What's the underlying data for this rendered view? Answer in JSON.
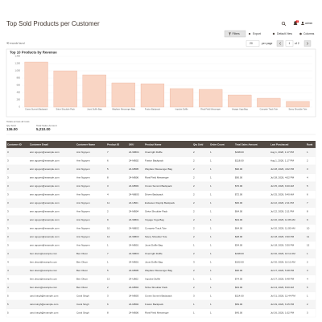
{
  "header": {
    "title": "Top Sold Products per Customer",
    "notifications": "1",
    "user": "admin"
  },
  "toolbar": {
    "filters": "Filters",
    "export": "Export",
    "view": "Default View",
    "columns": "Columns"
  },
  "records": "40 records found",
  "pager": {
    "per_page_value": "20",
    "per_page": "per page",
    "page": "1",
    "of": "of 2"
  },
  "chart_data": {
    "type": "bar",
    "title": "Top 10 Products by Revenue",
    "categories": [
      "Crown Summit Backpack",
      "Strive Shoulder Pack",
      "Joust Duffle Bag",
      "Wayfarer Messenger Bag",
      "Fusion Backpack",
      "Impulse Duffle",
      "Rival Field Messenger",
      "Voyage Yoga Bag",
      "Compete Track Tote",
      "Savvy Shoulder Tote"
    ],
    "values": [
      1244,
      1000,
      889,
      667,
      644,
      511,
      489,
      333,
      244,
      156
    ],
    "color": "#f9d5c4",
    "ylim": [
      0,
      1400
    ],
    "yticks": [
      0,
      200,
      400,
      600,
      800,
      {
        "value": 1000,
        "label": "1,000"
      },
      {
        "value": 1200,
        "label": "1,200"
      },
      {
        "value": 1400,
        "label": "1,400"
      }
    ],
    "grid": true
  },
  "summary": {
    "caption": "Totals across all rows",
    "qty_label": "Qty Sold",
    "qty": "136.00",
    "sales_label": "Total Sales Amount",
    "sales": "5,210.00"
  },
  "table": {
    "columns": [
      "Customer ID",
      "Customer Email",
      "Customer Name",
      "Product ID",
      "SKU",
      "Product Name",
      "Qty Sold",
      "Order Count",
      "Total Sales Amount",
      "Last Purchased",
      "Rank"
    ],
    "rows": [
      [
        "3",
        "ann.nguyen@example.com",
        "Ann Nguyen",
        "7",
        "24-WB04",
        "Overnight Duffle",
        "2",
        "1",
        "$198.00",
        "Aug 1, 2026, 1:17 PM",
        "1"
      ],
      [
        "3",
        "ann.nguyen@example.com",
        "Ann Nguyen",
        "6",
        "24-MB02",
        "Fusion Backpack",
        "2",
        "1",
        "$118.00",
        "Aug 1, 2026, 1:17 PM",
        "2"
      ],
      [
        "3",
        "ann.nguyen@example.com",
        "Ann Nguyen",
        "5",
        "24-MB05",
        "Wayfarer Messenger Bag",
        "2",
        "1",
        "$90.00",
        "Jul 28, 2026, 4:02 PM",
        "3"
      ],
      [
        "3",
        "ann.nguyen@example.com",
        "Ann Nguyen",
        "8",
        "24-MB06",
        "Rival Field Messenger",
        "2",
        "1",
        "$90.00",
        "Jul 28, 2026, 4:02 PM",
        "4"
      ],
      [
        "3",
        "ann.nguyen@example.com",
        "Ann Nguyen",
        "3",
        "24-MB03",
        "Crown Summit Backpack",
        "2",
        "1",
        "$76.00",
        "Jul 25, 2026, 9:40 AM",
        "5"
      ],
      [
        "3",
        "ann.nguyen@example.com",
        "Ann Nguyen",
        "4",
        "24-WB05",
        "Driven Backpack",
        "2",
        "1",
        "$72.00",
        "Jul 25, 2026, 9:40 AM",
        "6"
      ],
      [
        "3",
        "ann.nguyen@example.com",
        "Ann Nguyen",
        "11",
        "24-UB01",
        "Endeavor Daytrip Backpack",
        "2",
        "1",
        "$66.00",
        "Jul 22, 2026, 2:11 PM",
        "7"
      ],
      [
        "3",
        "ann.nguyen@example.com",
        "Ann Nguyen",
        "2",
        "24-MB04",
        "Strive Shoulder Pack",
        "2",
        "1",
        "$64.00",
        "Jul 22, 2026, 2:11 PM",
        "8"
      ],
      [
        "3",
        "ann.nguyen@example.com",
        "Ann Nguyen",
        "9",
        "24-WB01",
        "Voyage Yoga Bag",
        "2",
        "1",
        "$64.00",
        "Jul 20, 2026, 11:05 AM",
        "9"
      ],
      [
        "3",
        "ann.nguyen@example.com",
        "Ann Nguyen",
        "10",
        "24-WB02",
        "Compete Track Tote",
        "2",
        "1",
        "$64.00",
        "Jul 20, 2026, 11:05 AM",
        "10"
      ],
      [
        "3",
        "ann.nguyen@example.com",
        "Ann Nguyen",
        "12",
        "24-WB03",
        "Savvy Shoulder Tote",
        "2",
        "1",
        "$48.00",
        "Jul 18, 2026, 3:30 PM",
        "11"
      ],
      [
        "3",
        "ann.nguyen@example.com",
        "Ann Nguyen",
        "1",
        "24-MB01",
        "Joust Duffle Bag",
        "1",
        "1",
        "$34.00",
        "Jul 18, 2026, 3:30 PM",
        "12"
      ],
      [
        "4",
        "ben.olson@example.com",
        "Ben Olson",
        "7",
        "24-WB04",
        "Overnight Duffle",
        "2",
        "1",
        "$198.00",
        "Jul 30, 2026, 10:12 AM",
        "1"
      ],
      [
        "4",
        "ben.olson@example.com",
        "Ben Olson",
        "1",
        "24-MB01",
        "Joust Duffle Bag",
        "3",
        "1",
        "$102.00",
        "Jul 30, 2026, 10:12 AM",
        "2"
      ],
      [
        "4",
        "ben.olson@example.com",
        "Ben Olson",
        "5",
        "24-MB05",
        "Wayfarer Messenger Bag",
        "2",
        "1",
        "$90.00",
        "Jul 27, 2026, 5:48 PM",
        "3"
      ],
      [
        "4",
        "ben.olson@example.com",
        "Ben Olson",
        "13",
        "24-UB02",
        "Impulse Duffle",
        "1",
        "1",
        "$74.00",
        "Jul 27, 2026, 5:48 PM",
        "4"
      ],
      [
        "4",
        "ben.olson@example.com",
        "Ben Olson",
        "2",
        "24-MB04",
        "Strive Shoulder Pack",
        "2",
        "1",
        "$64.00",
        "Jul 24, 2026, 8:20 AM",
        "5"
      ],
      [
        "5",
        "carol.singh@example.com",
        "Carol Singh",
        "3",
        "24-MB03",
        "Crown Summit Backpack",
        "3",
        "1",
        "$114.00",
        "Jul 31, 2026, 12:44 PM",
        "1"
      ],
      [
        "5",
        "carol.singh@example.com",
        "Carol Singh",
        "6",
        "24-MB02",
        "Fusion Backpack",
        "1",
        "1",
        "$59.00",
        "Jul 29, 2026, 6:15 PM",
        "2"
      ],
      [
        "5",
        "carol.singh@example.com",
        "Carol Singh",
        "8",
        "24-MB06",
        "Rival Field Messenger",
        "1",
        "1",
        "$45.00",
        "Jul 26, 2026, 1:02 PM",
        "3"
      ]
    ]
  }
}
